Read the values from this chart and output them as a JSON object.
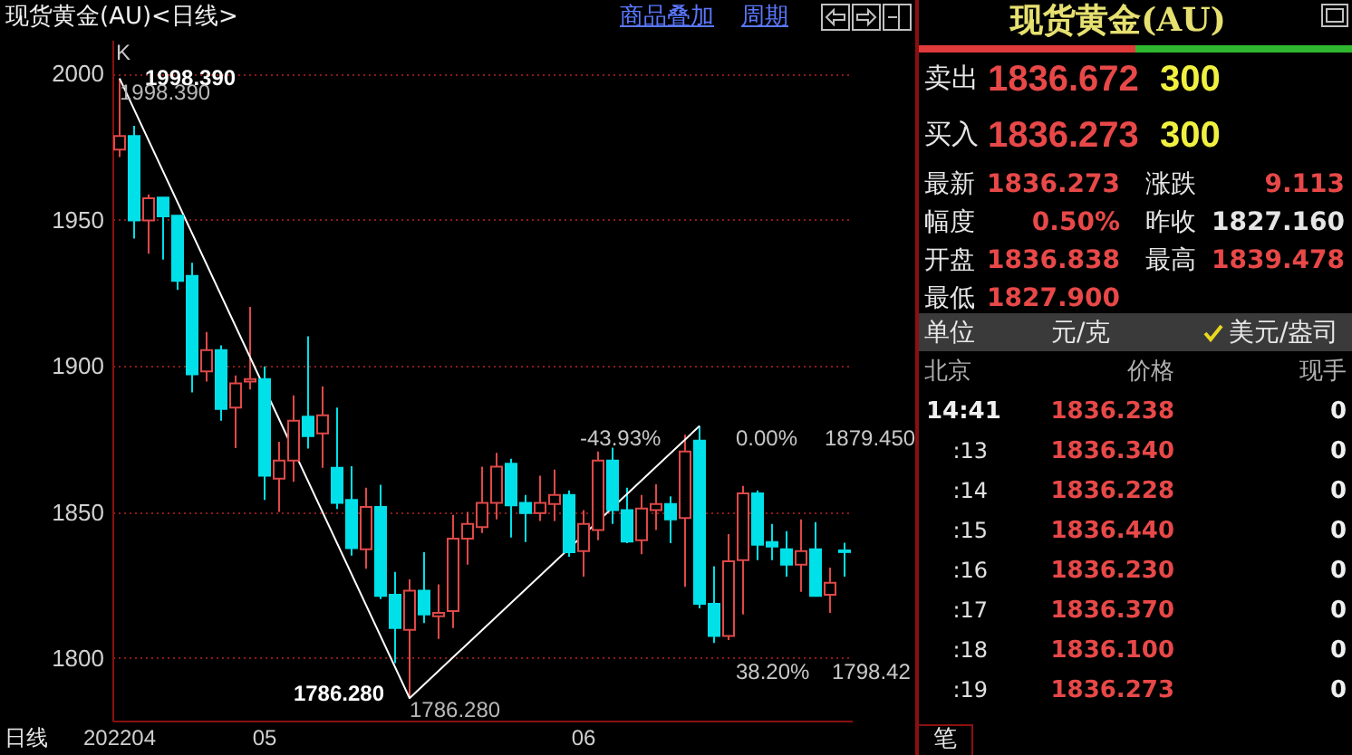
{
  "chart_data": {
    "type": "candlestick",
    "title": "现货黄金(AU)<日线>",
    "xlabel": "日线",
    "categories": [
      "202204",
      null,
      null,
      null,
      null,
      null,
      null,
      null,
      null,
      null,
      "05",
      null,
      null,
      null,
      null,
      null,
      null,
      null,
      null,
      null,
      null,
      null,
      null,
      null,
      null,
      null,
      null,
      null,
      null,
      null,
      null,
      null,
      "06",
      null,
      null,
      null,
      null,
      null,
      null,
      null,
      null,
      null,
      null,
      null,
      null,
      null,
      null,
      null,
      null,
      null,
      null
    ],
    "ohlc": [
      [
        1974.0,
        1998.39,
        1971.5,
        1978.7
      ],
      [
        1978.7,
        1982.2,
        1943.6,
        1949.8
      ],
      [
        1949.8,
        1958.7,
        1938.4,
        1957.4
      ],
      [
        1957.6,
        1957.6,
        1936.4,
        1951.2
      ],
      [
        1951.4,
        1951.4,
        1926.0,
        1929.1
      ],
      [
        1930.8,
        1935.3,
        1890.9,
        1897.1
      ],
      [
        1898.1,
        1911.6,
        1894.6,
        1905.4
      ],
      [
        1905.4,
        1907.0,
        1881.2,
        1885.3
      ],
      [
        1885.7,
        1896.7,
        1871.9,
        1894.0
      ],
      [
        1894.6,
        1920.2,
        1891.9,
        1895.5
      ],
      [
        1895.5,
        1899.8,
        1854.1,
        1862.4
      ],
      [
        1861.4,
        1874.0,
        1850.0,
        1867.6
      ],
      [
        1867.6,
        1889.9,
        1860.3,
        1881.2
      ],
      [
        1882.6,
        1910.1,
        1871.7,
        1876.0
      ],
      [
        1876.9,
        1893.0,
        1865.1,
        1883.1
      ],
      [
        1865.1,
        1885.7,
        1851.0,
        1853.1
      ],
      [
        1854.1,
        1865.7,
        1835.1,
        1837.6
      ],
      [
        1837.2,
        1858.3,
        1830.6,
        1851.7
      ],
      [
        1851.7,
        1859.3,
        1820.2,
        1821.3
      ],
      [
        1821.7,
        1829.5,
        1798.3,
        1810.3
      ],
      [
        1809.7,
        1826.9,
        1786.28,
        1823.1
      ],
      [
        1823.1,
        1836.2,
        1812.0,
        1814.9
      ],
      [
        1814.3,
        1825.2,
        1806.6,
        1815.5
      ],
      [
        1816.1,
        1849.0,
        1810.3,
        1840.9
      ],
      [
        1840.9,
        1850.0,
        1832.0,
        1845.9
      ],
      [
        1844.8,
        1865.5,
        1842.8,
        1853.1
      ],
      [
        1853.1,
        1870.2,
        1847.5,
        1865.5
      ],
      [
        1866.5,
        1868.2,
        1841.3,
        1852.3
      ],
      [
        1853.1,
        1855.8,
        1839.7,
        1849.6
      ],
      [
        1849.6,
        1862.4,
        1846.9,
        1853.1
      ],
      [
        1852.7,
        1864.5,
        1846.9,
        1855.8
      ],
      [
        1855.8,
        1857.4,
        1834.7,
        1836.2
      ],
      [
        1836.6,
        1850.6,
        1827.9,
        1845.9
      ],
      [
        1843.8,
        1870.7,
        1840.3,
        1867.6
      ],
      [
        1867.6,
        1872.0,
        1845.9,
        1850.6
      ],
      [
        1850.6,
        1858.3,
        1839.3,
        1839.9
      ],
      [
        1840.3,
        1855.8,
        1835.5,
        1851.2
      ],
      [
        1850.6,
        1859.5,
        1843.8,
        1852.7
      ],
      [
        1852.7,
        1855.4,
        1839.3,
        1847.5
      ],
      [
        1847.9,
        1876.4,
        1824.4,
        1870.7
      ],
      [
        1874.4,
        1879.45,
        1817.0,
        1818.6
      ],
      [
        1818.6,
        1831.4,
        1805.2,
        1807.6
      ],
      [
        1807.6,
        1842.4,
        1806.2,
        1833.1
      ],
      [
        1833.5,
        1858.9,
        1814.9,
        1856.4
      ],
      [
        1856.4,
        1857.4,
        1833.5,
        1838.8
      ],
      [
        1839.7,
        1845.9,
        1833.5,
        1838.2
      ],
      [
        1837.2,
        1843.4,
        1827.9,
        1832.0
      ],
      [
        1832.0,
        1847.5,
        1822.7,
        1836.6
      ],
      [
        1837.2,
        1846.5,
        1821.1,
        1821.3
      ],
      [
        1821.7,
        1831.0,
        1815.5,
        1825.8
      ],
      [
        1836.838,
        1839.478,
        1827.9,
        1836.273
      ]
    ],
    "colors": [
      "#e04848",
      "#00e0e8",
      "#e04848",
      "#00e0e8",
      "#00e0e8",
      "#00e0e8",
      "#e04848",
      "#00e0e8",
      "#e04848",
      "#e04848",
      "#00e0e8",
      "#e04848",
      "#e04848",
      "#00e0e8",
      "#e04848",
      "#00e0e8",
      "#00e0e8",
      "#e04848",
      "#00e0e8",
      "#00e0e8",
      "#e04848",
      "#00e0e8",
      "#e04848",
      "#e04848",
      "#e04848",
      "#e04848",
      "#e04848",
      "#00e0e8",
      "#00e0e8",
      "#e04848",
      "#e04848",
      "#00e0e8",
      "#e04848",
      "#e04848",
      "#00e0e8",
      "#00e0e8",
      "#e04848",
      "#e04848",
      "#00e0e8",
      "#e04848",
      "#00e0e8",
      "#00e0e8",
      "#e04848",
      "#e04848",
      "#00e0e8",
      "#00e0e8",
      "#00e0e8",
      "#e04848",
      "#00e0e8",
      "#e04848",
      "#00e0e8"
    ],
    "series": [
      {
        "type": "line",
        "color": "#ffffff",
        "values": [
          1998.39,
          null,
          null,
          null,
          null,
          null,
          null,
          null,
          null,
          null,
          null,
          null,
          null,
          null,
          null,
          null,
          null,
          null,
          null,
          null,
          1786.28,
          null,
          null,
          null,
          null,
          null,
          null,
          null,
          null,
          null,
          null,
          null,
          null,
          null,
          null,
          null,
          null,
          null,
          null,
          null,
          1879.45,
          null,
          null,
          null,
          null,
          null,
          null,
          null,
          null,
          null,
          null
        ]
      }
    ],
    "ylim": [
      1778.6,
      2011.6
    ],
    "yticks": [
      1800,
      1850,
      1900,
      1950,
      2000
    ],
    "grid": "y",
    "annotations": [
      "K",
      "1998.390",
      "1998.390",
      "1786.280",
      "1786.280",
      "-43.93%",
      "0.00%",
      "1879.450",
      "38.20%",
      "1798.42",
      "商品叠加",
      "周期",
      "现货黄金(AU)",
      "卖出",
      "1836.672",
      "300",
      "买入",
      "1836.273",
      "300",
      "最新",
      "1836.273",
      "涨跌",
      "9.113",
      "幅度",
      "0.50%",
      "昨收",
      "1827.160",
      "开盘",
      "1836.838",
      "最高",
      "1839.478",
      "最低",
      "1827.900",
      "单位",
      "元/克",
      "美元/盎司",
      "北京",
      "价格",
      "现手",
      "14:41",
      "1836.238",
      "0",
      ":13",
      "1836.340",
      "0",
      ":14",
      "1836.228",
      "0",
      ":15",
      "1836.440",
      "0",
      ":16",
      "1836.230",
      "0",
      ":17",
      "1836.370",
      "0",
      ":18",
      "1836.100",
      "0",
      ":19",
      "1836.273",
      "0",
      "笔"
    ]
  }
}
